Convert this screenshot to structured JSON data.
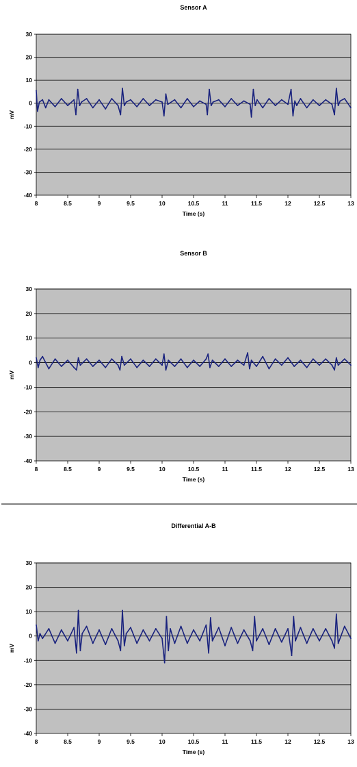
{
  "chart_data": [
    {
      "type": "line",
      "title": "Sensor A",
      "xlabel": "Time (s)",
      "ylabel": "mV",
      "xlim": [
        8,
        13
      ],
      "ylim": [
        -40,
        30
      ],
      "x_ticks": [
        "8",
        "8.5",
        "9",
        "9.5",
        "10",
        "10.5",
        "11",
        "11.5",
        "12",
        "12.5",
        "13"
      ],
      "y_ticks": [
        "30",
        "20",
        "10",
        "0",
        "-10",
        "-20",
        "-30",
        "-40"
      ],
      "grid": "horizontal",
      "plot_background": "#c0c0c0",
      "line_color": "#1a237e",
      "series": [
        {
          "x": [
            8,
            8.02,
            8.05,
            8.1,
            8.15,
            8.2,
            8.3,
            8.4,
            8.5,
            8.6,
            8.63,
            8.66,
            8.69,
            8.72,
            8.8,
            8.9,
            9.0,
            9.1,
            9.2,
            9.3,
            9.34,
            9.37,
            9.4,
            9.43,
            9.5,
            9.6,
            9.7,
            9.8,
            9.9,
            10.0,
            10.03,
            10.06,
            10.09,
            10.2,
            10.3,
            10.4,
            10.5,
            10.6,
            10.7,
            10.72,
            10.75,
            10.78,
            10.81,
            10.9,
            11.0,
            11.1,
            11.2,
            11.3,
            11.4,
            11.42,
            11.45,
            11.48,
            11.51,
            11.6,
            11.7,
            11.8,
            11.9,
            12.0,
            12.05,
            12.08,
            12.11,
            12.14,
            12.2,
            12.3,
            12.4,
            12.5,
            12.6,
            12.7,
            12.74,
            12.77,
            12.8,
            12.83,
            12.9,
            13.0
          ],
          "y": [
            5.5,
            -3.5,
            0.5,
            1.5,
            -2,
            1.5,
            -1.5,
            2,
            -1,
            1.5,
            -5,
            6,
            -1,
            0.5,
            2,
            -2,
            1.5,
            -2.5,
            2,
            -1,
            -5,
            6.5,
            -1,
            0.5,
            1.5,
            -1.5,
            2,
            -1,
            1.5,
            0.5,
            -5.5,
            4,
            -0.5,
            1.5,
            -2,
            2,
            -1.5,
            1,
            -0.5,
            -5,
            6,
            -1,
            0.5,
            1.5,
            -1.5,
            2,
            -1,
            1,
            -0.5,
            -6,
            6,
            -1,
            1.5,
            -2,
            2,
            -1,
            1.5,
            -0.5,
            6,
            -5.5,
            1,
            -1,
            2,
            -2,
            1.5,
            -1,
            1.5,
            -0.5,
            -5,
            6.5,
            -1,
            1,
            2,
            -2
          ]
        }
      ]
    },
    {
      "type": "line",
      "title": "Sensor B",
      "xlabel": "Time (s)",
      "ylabel": "mV",
      "xlim": [
        8,
        13
      ],
      "ylim": [
        -40,
        30
      ],
      "x_ticks": [
        "8",
        "8.5",
        "9",
        "9.5",
        "10",
        "10.5",
        "11",
        "11.5",
        "12",
        "12.5",
        "13"
      ],
      "y_ticks": [
        "30",
        "20",
        "10",
        "0",
        "-10",
        "-20",
        "-30",
        "-40"
      ],
      "grid": "horizontal",
      "plot_background": "#c0c0c0",
      "line_color": "#1a237e",
      "series": [
        {
          "x": [
            8,
            8.03,
            8.06,
            8.1,
            8.2,
            8.3,
            8.4,
            8.5,
            8.6,
            8.64,
            8.67,
            8.7,
            8.8,
            8.9,
            9.0,
            9.1,
            9.2,
            9.3,
            9.33,
            9.36,
            9.4,
            9.5,
            9.6,
            9.7,
            9.8,
            9.9,
            10.0,
            10.03,
            10.06,
            10.1,
            10.2,
            10.3,
            10.4,
            10.5,
            10.6,
            10.7,
            10.73,
            10.76,
            10.8,
            10.9,
            11.0,
            11.1,
            11.2,
            11.3,
            11.36,
            11.39,
            11.42,
            11.5,
            11.6,
            11.7,
            11.8,
            11.9,
            12.0,
            12.1,
            12.2,
            12.3,
            12.4,
            12.5,
            12.6,
            12.7,
            12.74,
            12.77,
            12.8,
            12.9,
            13.0
          ],
          "y": [
            2,
            -2,
            1,
            2.5,
            -2.5,
            1.5,
            -1.5,
            1,
            -2,
            -3,
            2,
            -1,
            1.5,
            -1.5,
            1,
            -2,
            1.5,
            -1,
            -3,
            2.5,
            -1,
            1.5,
            -2,
            1,
            -1.5,
            1.5,
            -1,
            3.5,
            -3,
            1,
            -1.5,
            1.5,
            -2,
            1,
            -1.5,
            1.5,
            3.5,
            -2,
            1,
            -1.5,
            1.5,
            -1.5,
            1,
            -1,
            4,
            -2.5,
            1,
            -1.5,
            2.5,
            -2.5,
            1.5,
            -1,
            2,
            -1.5,
            1,
            -2,
            1.5,
            -1,
            1.5,
            -1,
            -3,
            2,
            -1,
            1.5,
            -1
          ]
        }
      ]
    },
    {
      "type": "line",
      "title": "Differential A-B",
      "xlabel": "Time (s)",
      "ylabel": "mV",
      "xlim": [
        8,
        13
      ],
      "ylim": [
        -40,
        30
      ],
      "x_ticks": [
        "8",
        "8.5",
        "9",
        "9.5",
        "10",
        "10.5",
        "11",
        "11.5",
        "12",
        "12.5",
        "13"
      ],
      "y_ticks": [
        "30",
        "20",
        "10",
        "0",
        "-10",
        "-20",
        "-30",
        "-40"
      ],
      "grid": "horizontal",
      "plot_background": "#c0c0c0",
      "line_color": "#1a237e",
      "series": [
        {
          "x": [
            8,
            8.03,
            8.06,
            8.1,
            8.2,
            8.3,
            8.4,
            8.5,
            8.6,
            8.64,
            8.67,
            8.7,
            8.73,
            8.8,
            8.9,
            9.0,
            9.1,
            9.2,
            9.3,
            9.34,
            9.37,
            9.4,
            9.43,
            9.5,
            9.6,
            9.7,
            9.8,
            9.9,
            10.0,
            10.04,
            10.07,
            10.1,
            10.13,
            10.2,
            10.3,
            10.4,
            10.5,
            10.6,
            10.7,
            10.74,
            10.77,
            10.8,
            10.9,
            11.0,
            11.1,
            11.2,
            11.3,
            11.4,
            11.44,
            11.47,
            11.5,
            11.6,
            11.7,
            11.8,
            11.9,
            12.0,
            12.06,
            12.09,
            12.12,
            12.2,
            12.3,
            12.4,
            12.5,
            12.6,
            12.7,
            12.74,
            12.77,
            12.8,
            12.9,
            13.0
          ],
          "y": [
            4.5,
            -2,
            1,
            -1,
            3,
            -3,
            2.5,
            -2,
            3.5,
            -7,
            10.5,
            -6,
            1,
            4,
            -3,
            2.5,
            -3.5,
            3,
            -2,
            -6,
            10.5,
            -4,
            1,
            3.5,
            -3,
            2.5,
            -2,
            3,
            -1,
            -11,
            8,
            -6,
            3,
            -3,
            4,
            -3,
            2.5,
            -2,
            4.5,
            -7,
            7.5,
            -2,
            3.5,
            -4,
            3.5,
            -3,
            2.5,
            -2,
            -6,
            8,
            -2,
            3,
            -3.5,
            3,
            -2.5,
            3,
            -8,
            8,
            -2,
            3.5,
            -3,
            3,
            -2,
            3,
            -2,
            -5,
            9,
            -3,
            4,
            -1
          ]
        }
      ]
    }
  ]
}
